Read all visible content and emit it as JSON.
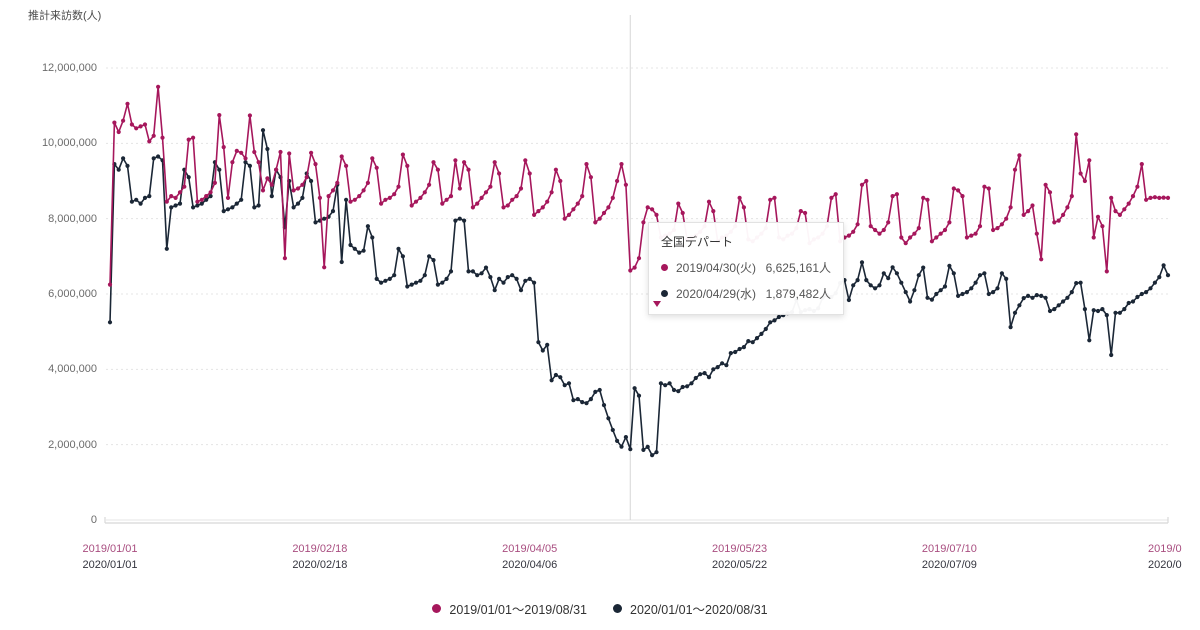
{
  "page": {
    "background": "#ffffff"
  },
  "colors": {
    "series_2019": "#a6175c",
    "series_2020": "#1b2736",
    "x_label_2019": "#a94e80",
    "x_label_2020": "#33343e",
    "gridline": "#e4e4e4",
    "axis_line": "#d8d8d8",
    "cursor_line": "#d6d6d6",
    "y_label": "#6b6b6b"
  },
  "chart": {
    "y_axis": {
      "title": "推計来訪数(人)",
      "ticks": [
        {
          "label": "12,000,000",
          "value_millions": 12
        },
        {
          "label": "10,000,000",
          "value_millions": 10
        },
        {
          "label": "8,000,000",
          "value_millions": 8
        },
        {
          "label": "6,000,000",
          "value_millions": 6
        },
        {
          "label": "4,000,000",
          "value_millions": 4
        },
        {
          "label": "2,000,000",
          "value_millions": 2
        },
        {
          "label": "0",
          "value_millions": 0
        }
      ]
    },
    "x_axis": {
      "ticks": [
        {
          "top": "2019/01/01",
          "bottom": "2020/01/01",
          "day_index": 0
        },
        {
          "top": "2019/02/18",
          "bottom": "2020/02/18",
          "day_index": 48
        },
        {
          "top": "2019/04/05",
          "bottom": "2020/04/06",
          "day_index": 96
        },
        {
          "top": "2019/05/23",
          "bottom": "2020/05/22",
          "day_index": 144
        },
        {
          "top": "2019/07/10",
          "bottom": "2020/07/09",
          "day_index": 192
        },
        {
          "top": "2019/0",
          "bottom": "2020/0",
          "day_index": null,
          "truncated": true
        }
      ]
    }
  },
  "tooltip": {
    "title": "全国デパート",
    "rows": [
      {
        "date": "2019/04/30(火)",
        "value": "6,625,161人",
        "color": "#a6175c"
      },
      {
        "date": "2020/04/29(水)",
        "value": "1,879,482人",
        "color": "#1b2736"
      }
    ]
  },
  "legend": {
    "items": [
      {
        "label": "2019/01/01～2019/08/31",
        "color": "#a6175c"
      },
      {
        "label": "2020/01/01～2020/08/31",
        "color": "#1b2736"
      }
    ]
  },
  "chart_data": {
    "type": "line",
    "title": "全国デパート 推計来訪数(人)",
    "ylabel": "推計来訪数(人)",
    "unit": "millions of people (人 ×1,000,000)",
    "x_description": "day index 0-242 = Jan 1 .. Aug 31 of each year (daily)",
    "ylim_millions": [
      0,
      12
    ],
    "grid": true,
    "legend_position": "bottom-center",
    "highlight_index": 119,
    "highlight": [
      {
        "series": "2019/01/01～2019/08/31",
        "date": "2019/04/30(火)",
        "value_people": 6625161
      },
      {
        "series": "2020/01/01～2020/08/31",
        "date": "2020/04/29(水)",
        "value_people": 1879482
      }
    ],
    "series": [
      {
        "name": "2019/01/01～2019/08/31",
        "color": "#a6175c",
        "values_millions": [
          6.25,
          10.55,
          10.3,
          10.6,
          11.05,
          10.5,
          10.4,
          10.45,
          10.5,
          10.05,
          10.2,
          11.5,
          10.15,
          8.45,
          8.6,
          8.55,
          8.7,
          8.85,
          10.1,
          10.15,
          8.45,
          8.5,
          8.6,
          8.7,
          8.95,
          10.75,
          9.9,
          8.55,
          9.5,
          9.8,
          9.75,
          9.6,
          10.74,
          9.77,
          9.5,
          8.75,
          9.07,
          8.9,
          9.3,
          9.77,
          6.95,
          9.73,
          8.75,
          8.8,
          8.9,
          9.1,
          9.75,
          9.45,
          8.55,
          6.71,
          8.6,
          8.75,
          8.95,
          9.65,
          9.4,
          8.45,
          8.5,
          8.6,
          8.75,
          8.95,
          9.6,
          9.35,
          8.4,
          8.5,
          8.55,
          8.65,
          8.85,
          9.7,
          9.4,
          8.35,
          8.45,
          8.55,
          8.7,
          8.9,
          9.5,
          9.3,
          8.4,
          8.5,
          8.6,
          9.55,
          8.8,
          9.5,
          9.3,
          8.3,
          8.4,
          8.55,
          8.7,
          8.85,
          9.5,
          9.2,
          8.3,
          8.35,
          8.5,
          8.6,
          8.8,
          9.55,
          9.2,
          8.1,
          8.2,
          8.3,
          8.45,
          8.7,
          9.3,
          9.0,
          8.0,
          8.1,
          8.25,
          8.4,
          8.6,
          9.45,
          9.1,
          7.9,
          8.0,
          8.15,
          8.3,
          8.55,
          9.0,
          9.45,
          8.9,
          6.625161,
          6.7,
          6.95,
          7.9,
          8.3,
          8.25,
          8.1,
          7.5,
          7.55,
          7.6,
          7.7,
          8.4,
          8.15,
          7.45,
          7.5,
          7.55,
          7.65,
          7.8,
          8.45,
          8.2,
          7.4,
          7.5,
          7.55,
          7.65,
          7.8,
          8.55,
          8.3,
          7.45,
          7.4,
          7.5,
          7.6,
          7.75,
          8.5,
          8.55,
          7.5,
          7.45,
          7.55,
          7.6,
          7.75,
          8.2,
          8.15,
          7.35,
          7.45,
          7.5,
          7.6,
          7.8,
          8.55,
          8.65,
          7.4,
          7.5,
          7.55,
          7.65,
          7.85,
          8.9,
          9.0,
          7.8,
          7.7,
          7.6,
          7.7,
          7.9,
          8.6,
          8.65,
          7.5,
          7.35,
          7.5,
          7.6,
          7.75,
          8.55,
          8.5,
          7.4,
          7.5,
          7.6,
          7.7,
          7.9,
          8.8,
          8.75,
          8.6,
          7.5,
          7.55,
          7.6,
          7.8,
          8.85,
          8.8,
          7.7,
          7.75,
          7.85,
          8.0,
          8.3,
          9.3,
          9.68,
          8.1,
          8.2,
          8.35,
          7.6,
          6.92,
          8.9,
          8.7,
          7.9,
          7.95,
          8.1,
          8.3,
          8.6,
          10.24,
          9.2,
          9.0,
          9.55,
          7.5,
          8.05,
          7.8,
          6.6,
          8.55,
          8.2,
          8.1,
          8.25,
          8.4,
          8.6,
          8.85,
          9.45,
          8.5,
          8.55,
          8.57,
          8.55,
          8.56,
          8.55
        ]
      },
      {
        "name": "2020/01/01～2020/08/31",
        "color": "#1b2736",
        "values_millions": [
          5.25,
          9.45,
          9.3,
          9.6,
          9.4,
          8.45,
          8.5,
          8.4,
          8.55,
          8.6,
          9.6,
          9.65,
          9.55,
          7.2,
          8.3,
          8.35,
          8.4,
          9.3,
          9.1,
          8.3,
          8.35,
          8.4,
          8.5,
          8.6,
          9.5,
          9.3,
          8.2,
          8.25,
          8.3,
          8.4,
          8.5,
          9.5,
          9.4,
          8.3,
          8.35,
          10.35,
          9.85,
          8.6,
          9.3,
          9.1,
          7.77,
          9.0,
          8.3,
          8.4,
          8.55,
          9.2,
          9.0,
          7.9,
          7.95,
          8.0,
          8.05,
          8.2,
          8.9,
          6.85,
          8.5,
          7.3,
          7.2,
          7.1,
          7.15,
          7.8,
          7.5,
          6.4,
          6.3,
          6.35,
          6.4,
          6.5,
          7.2,
          7.0,
          6.2,
          6.25,
          6.3,
          6.35,
          6.5,
          7.0,
          6.9,
          6.25,
          6.3,
          6.4,
          6.6,
          7.95,
          8.0,
          7.95,
          6.6,
          6.6,
          6.5,
          6.55,
          6.7,
          6.45,
          6.1,
          6.4,
          6.3,
          6.45,
          6.5,
          6.4,
          6.1,
          6.35,
          6.4,
          6.3,
          4.72,
          4.5,
          4.65,
          3.71,
          3.85,
          3.79,
          3.58,
          3.63,
          3.18,
          3.21,
          3.13,
          3.1,
          3.21,
          3.4,
          3.45,
          3.05,
          2.7,
          2.39,
          2.1,
          1.95,
          2.2,
          1.879482,
          3.5,
          3.3,
          1.86,
          1.94,
          1.72,
          1.8,
          3.63,
          3.58,
          3.63,
          3.45,
          3.42,
          3.53,
          3.55,
          3.63,
          3.77,
          3.87,
          3.9,
          3.79,
          4.0,
          4.06,
          4.16,
          4.11,
          4.43,
          4.46,
          4.54,
          4.59,
          4.75,
          4.72,
          4.83,
          4.94,
          5.07,
          5.25,
          5.3,
          5.39,
          5.44,
          5.49,
          5.52,
          5.84,
          5.52,
          5.57,
          5.6,
          5.55,
          5.62,
          5.9,
          5.97,
          5.92,
          6.02,
          6.29,
          6.37,
          5.84,
          6.23,
          6.37,
          6.84,
          6.37,
          6.23,
          6.15,
          6.23,
          6.55,
          6.42,
          6.71,
          6.55,
          6.3,
          6.05,
          5.8,
          6.1,
          6.5,
          6.7,
          5.9,
          5.85,
          6.0,
          6.1,
          6.2,
          6.75,
          6.55,
          5.95,
          6.0,
          6.05,
          6.15,
          6.3,
          6.5,
          6.55,
          6.0,
          6.05,
          6.15,
          6.55,
          6.4,
          5.12,
          5.5,
          5.7,
          5.89,
          5.95,
          5.9,
          5.97,
          5.95,
          5.9,
          5.55,
          5.6,
          5.7,
          5.8,
          5.9,
          6.05,
          6.29,
          6.3,
          5.6,
          4.77,
          5.57,
          5.55,
          5.6,
          5.44,
          4.38,
          5.5,
          5.5,
          5.6,
          5.76,
          5.8,
          5.92,
          6.0,
          6.05,
          6.15,
          6.3,
          6.45,
          6.76,
          6.5
        ]
      }
    ]
  }
}
